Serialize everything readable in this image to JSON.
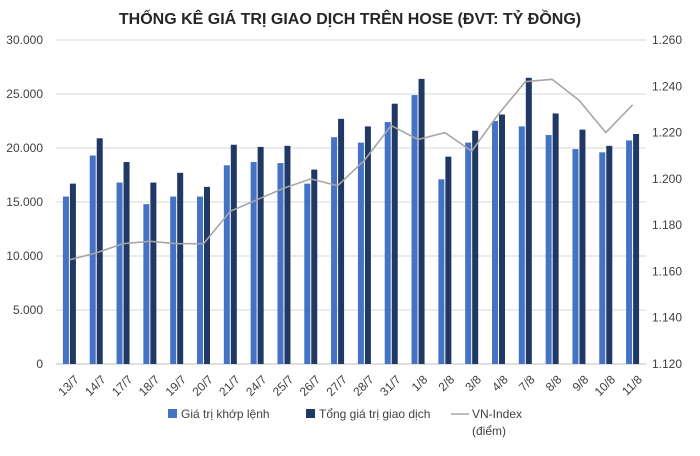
{
  "chart_data": {
    "type": "bar",
    "title": "THỐNG KÊ GIÁ TRỊ GIAO DỊCH TRÊN HOSE (ĐVT: TỶ ĐỒNG)",
    "categories": [
      "13/7",
      "14/7",
      "17/7",
      "18/7",
      "19/7",
      "20/7",
      "21/7",
      "24/7",
      "25/7",
      "26/7",
      "27/7",
      "28/7",
      "31/7",
      "1/8",
      "2/8",
      "3/8",
      "4/8",
      "7/8",
      "8/8",
      "9/8",
      "10/8",
      "11/8"
    ],
    "y_left": {
      "min": 0,
      "max": 30000,
      "step": 5000,
      "tick_labels": [
        "0",
        "5.000",
        "10.000",
        "15.000",
        "20.000",
        "25.000",
        "30.000"
      ]
    },
    "y_right": {
      "min": 1120,
      "max": 1260,
      "step": 20,
      "tick_labels": [
        "1.120",
        "1.140",
        "1.160",
        "1.180",
        "1.200",
        "1.220",
        "1.240",
        "1.260"
      ]
    },
    "grid": true,
    "legend_position": "bottom",
    "series": [
      {
        "name": "Giá trị khớp lệnh",
        "type": "bar",
        "axis": "left",
        "color": "#4472c4",
        "values": [
          15500,
          19300,
          16800,
          14800,
          15500,
          15500,
          18400,
          18700,
          18600,
          16700,
          21000,
          20500,
          22400,
          24900,
          17100,
          20500,
          22500,
          22000,
          21200,
          19900,
          19600,
          20700
        ]
      },
      {
        "name": "Tổng giá trị giao dịch",
        "type": "bar",
        "axis": "left",
        "color": "#1f3864",
        "values": [
          16700,
          20900,
          18700,
          16800,
          17700,
          16400,
          20300,
          20100,
          20200,
          18000,
          22700,
          22000,
          24100,
          26400,
          19200,
          21600,
          23100,
          26500,
          23200,
          21700,
          20200,
          21300
        ]
      },
      {
        "name": "VN-Index",
        "name_line2": "(điểm)",
        "type": "line",
        "axis": "right",
        "color": "#a6a6a6",
        "values": [
          1165,
          1168,
          1172,
          1173,
          1172,
          1172,
          1186,
          1191,
          1196,
          1200,
          1197,
          1208,
          1223,
          1217,
          1220,
          1212,
          1228,
          1242,
          1243,
          1234,
          1220,
          1232
        ]
      }
    ]
  }
}
